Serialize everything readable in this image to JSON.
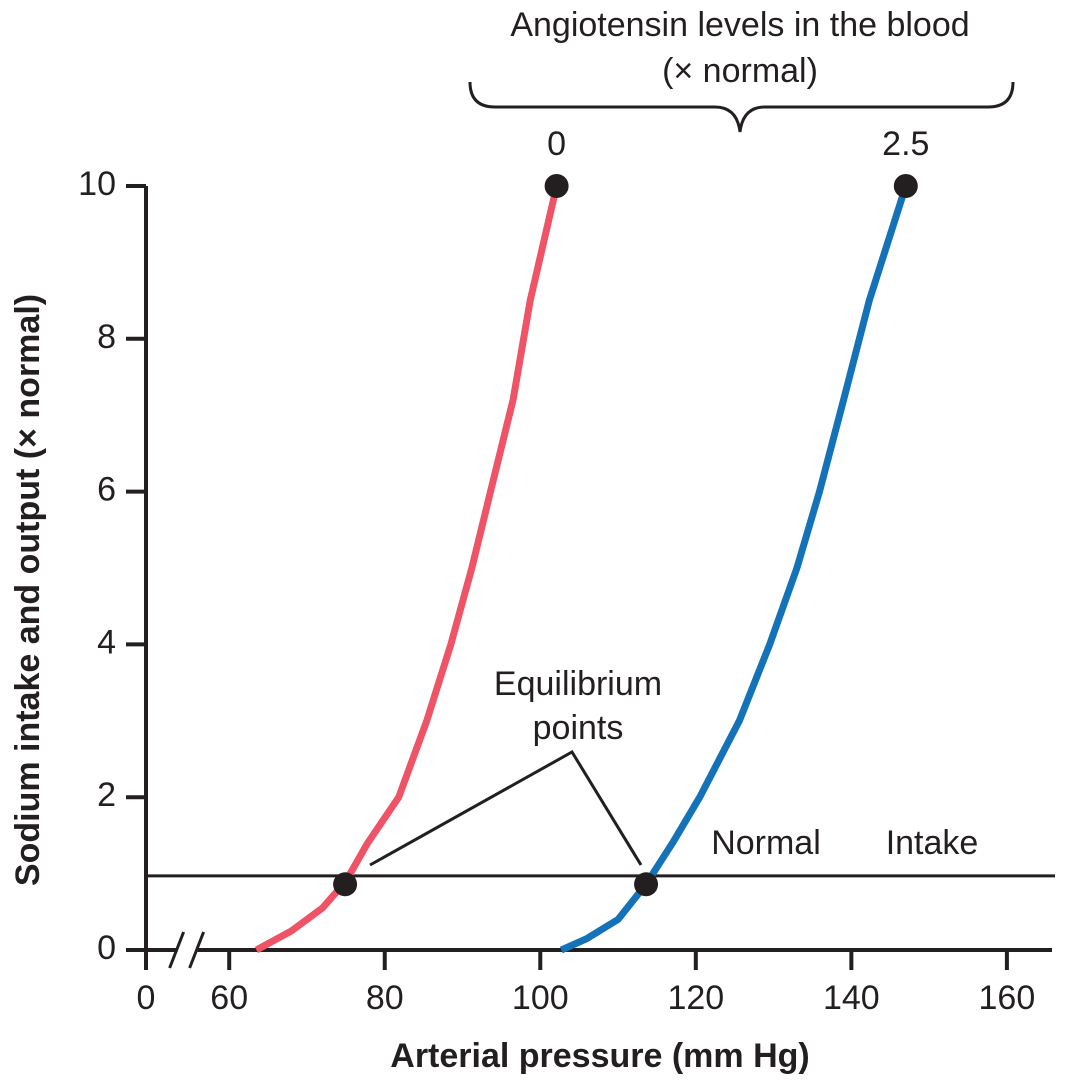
{
  "chart_data": {
    "type": "line",
    "title": "Angiotensin levels in the blood",
    "subtitle": "(× normal)",
    "x_label": "Arterial pressure (mm Hg)",
    "y_label": "Sodium intake and output (× normal)",
    "xlim": [
      0,
      165.8
    ],
    "x_break": [
      0,
      49.3
    ],
    "xticks": [
      0,
      60,
      80,
      100,
      120,
      140,
      160
    ],
    "ylim": [
      0,
      10
    ],
    "yticks": [
      0,
      2,
      4,
      6,
      8,
      10
    ],
    "series": [
      {
        "name": "0",
        "color": "#ef5366",
        "x": [
          63.5,
          68,
          72,
          75,
          77.8,
          81.8,
          85.4,
          88.5,
          91.2,
          93.6,
          96.5,
          98.7,
          102.1
        ],
        "values": [
          0,
          0.25,
          0.55,
          0.9,
          1.4,
          2,
          3,
          4,
          5,
          6,
          7.2,
          8.5,
          10
        ]
      },
      {
        "name": "2.5",
        "color": "#1372b8",
        "x": [
          102.7,
          106,
          110,
          113.6,
          117,
          120.5,
          125.6,
          129.5,
          133,
          135.9,
          139,
          142.3,
          147
        ],
        "values": [
          0,
          0.15,
          0.4,
          0.86,
          1.4,
          2,
          3,
          4,
          5,
          6,
          7.2,
          8.5,
          10
        ]
      }
    ],
    "intake_line": {
      "value": 0.97,
      "labels": [
        "Normal",
        "Intake"
      ]
    },
    "equilibrium": {
      "labels": [
        "Equilibrium",
        "points"
      ],
      "x": [
        74.9,
        113.6
      ],
      "values": [
        0.86,
        0.86
      ]
    }
  }
}
